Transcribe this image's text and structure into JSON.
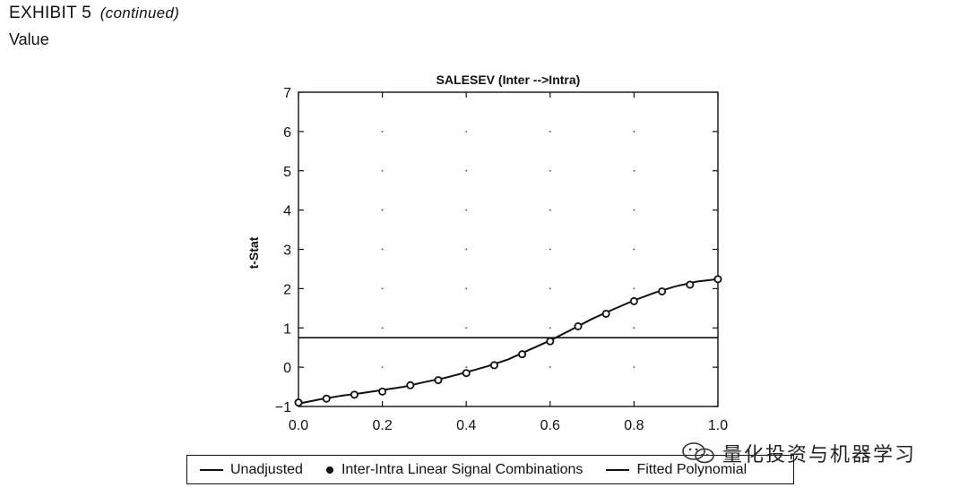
{
  "exhibit": {
    "label": "EXHIBIT 5",
    "continued": "(continued)"
  },
  "subtitle": "Value",
  "chart_data": {
    "type": "line",
    "title": "SALESEV (Inter -->Intra)",
    "xlabel": "",
    "ylabel": "t-Stat",
    "xlim": [
      0.0,
      1.0
    ],
    "ylim": [
      -1,
      7
    ],
    "xticks": [
      "0.0",
      "0.2",
      "0.4",
      "0.6",
      "0.8",
      "1.0"
    ],
    "yticks": [
      "−1",
      "0",
      "1",
      "2",
      "3",
      "4",
      "5",
      "6",
      "7"
    ],
    "grid": "dotted",
    "legend_position": "bottom",
    "series": [
      {
        "name": "Unadjusted",
        "kind": "hline",
        "y": 0.75
      },
      {
        "name": "Inter-Intra Linear Signal Combinations",
        "kind": "points",
        "x": [
          0.0,
          0.0667,
          0.1333,
          0.2,
          0.2667,
          0.3333,
          0.4,
          0.4667,
          0.5333,
          0.6,
          0.6667,
          0.7333,
          0.8,
          0.8667,
          0.9333,
          1.0
        ],
        "y": [
          -0.9,
          -0.8,
          -0.7,
          -0.62,
          -0.46,
          -0.33,
          -0.15,
          0.05,
          0.33,
          0.66,
          1.04,
          1.36,
          1.68,
          1.93,
          2.1,
          2.24
        ]
      },
      {
        "name": "Fitted Polynomial",
        "kind": "curve",
        "x": [
          0.0,
          0.05,
          0.1,
          0.15,
          0.2,
          0.25,
          0.3,
          0.35,
          0.4,
          0.45,
          0.5,
          0.55,
          0.6,
          0.65,
          0.7,
          0.75,
          0.8,
          0.85,
          0.9,
          0.95,
          1.0
        ],
        "y": [
          -0.93,
          -0.82,
          -0.73,
          -0.66,
          -0.58,
          -0.5,
          -0.38,
          -0.27,
          -0.13,
          0.02,
          0.2,
          0.44,
          0.68,
          0.95,
          1.23,
          1.47,
          1.7,
          1.9,
          2.06,
          2.18,
          2.24
        ]
      }
    ]
  },
  "legend": {
    "unadjusted": "Unadjusted",
    "points": "Inter-Intra Linear Signal Combinations",
    "fitted": "Fitted Polynomial"
  },
  "watermark": "量化投资与机器学习"
}
